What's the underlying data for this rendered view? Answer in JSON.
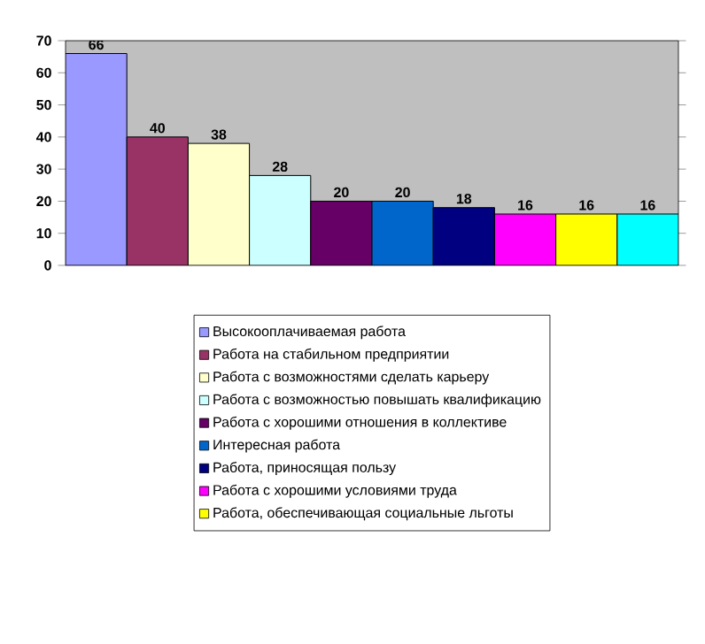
{
  "chart_data": {
    "type": "bar",
    "categories": [
      null
    ],
    "series": [
      {
        "name": "Высокооплачиваемая работа",
        "color": "#9999ff",
        "values": [
          66
        ]
      },
      {
        "name": "Работа на стабильном предприятии",
        "color": "#993366",
        "values": [
          40
        ]
      },
      {
        "name": "Работа с возможностями сделать карьеру",
        "color": "#ffffcc",
        "values": [
          38
        ]
      },
      {
        "name": "Работа с возможностью повышать квалификацию",
        "color": "#ccffff",
        "values": [
          28
        ]
      },
      {
        "name": "Работа с хорошими отношения в коллективе",
        "color": "#660066",
        "values": [
          20
        ]
      },
      {
        "name": "Интересная работа",
        "color": "#0066cc",
        "values": [
          20
        ]
      },
      {
        "name": "Работа, приносящая пользу",
        "color": "#000080",
        "values": [
          18
        ]
      },
      {
        "name": "Работа с хорошими условиями труда",
        "color": "#ff00ff",
        "values": [
          16
        ]
      },
      {
        "name": "Работа, обеспечивающая социальные льготы",
        "color": "#ffff00",
        "values": [
          16
        ]
      },
      {
        "color": "#00ffff",
        "values": [
          16
        ]
      }
    ],
    "ylim": [
      0,
      70
    ],
    "yticks": [
      0,
      10,
      20,
      30,
      40,
      50,
      60,
      70
    ],
    "data_labels": true,
    "legend": "bottom",
    "grid": false
  }
}
